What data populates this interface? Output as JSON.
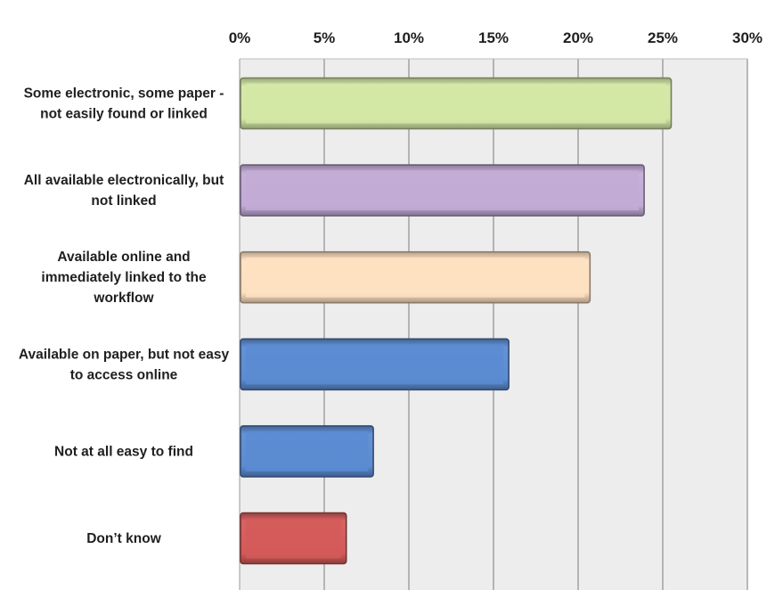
{
  "chart_data": {
    "type": "bar",
    "orientation": "horizontal",
    "title": "",
    "xlabel": "",
    "ylabel": "",
    "xlim": [
      0,
      30
    ],
    "x_ticks": [
      "0%",
      "5%",
      "10%",
      "15%",
      "20%",
      "25%",
      "30%"
    ],
    "x_tick_values": [
      0,
      5,
      10,
      15,
      20,
      25,
      30
    ],
    "x_axis_position": "top",
    "grid": true,
    "legend": "none",
    "unit": "%",
    "categories": [
      "Some electronic, some paper - not easily found or linked",
      "All available electronically, but not linked",
      "Available online and immediately linked to the workflow",
      "Available on paper, but not easy to access online",
      "Not at all easy to find",
      "Don’t know"
    ],
    "category_label_lines": [
      [
        "Some electronic, some paper -",
        "not easily found or linked"
      ],
      [
        "All available electronically, but",
        "not linked"
      ],
      [
        "Available online and",
        "immediately linked to the",
        "workflow"
      ],
      [
        "Available on paper, but not easy",
        "to access online"
      ],
      [
        "Not at all easy to find"
      ],
      [
        "Don’t know"
      ]
    ],
    "values": [
      25.5,
      23.9,
      20.7,
      15.9,
      7.9,
      6.3
    ],
    "bar_colors": [
      "#d3e7a6",
      "#c2abd6",
      "#fde0c0",
      "#5b8bd1",
      "#5b8bd1",
      "#d35a59"
    ]
  }
}
